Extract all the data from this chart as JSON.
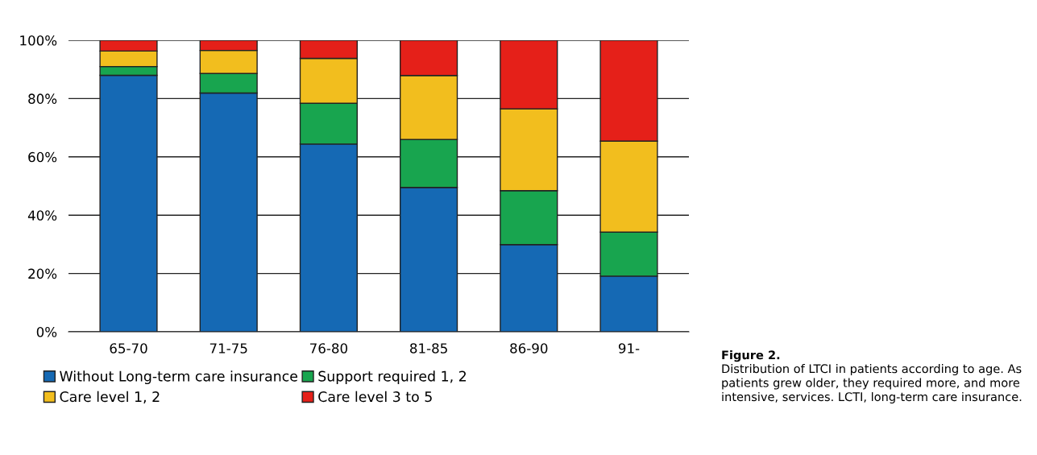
{
  "chart_data": {
    "type": "bar",
    "stacked": true,
    "categories": [
      "65-70",
      "71-75",
      "76-80",
      "81-85",
      "86-90",
      "91-"
    ],
    "series": [
      {
        "name": "Without Long-term care insurance",
        "color": "#1569b4",
        "values": [
          88.0,
          81.9,
          64.4,
          49.5,
          29.9,
          19.1
        ]
      },
      {
        "name": "Support required 1, 2",
        "color": "#18a54f",
        "values": [
          3.0,
          6.7,
          14.0,
          16.5,
          18.5,
          15.1
        ]
      },
      {
        "name": "Care level 1, 2",
        "color": "#f2be1e",
        "values": [
          5.3,
          7.9,
          15.4,
          21.9,
          28.1,
          31.2
        ]
      },
      {
        "name": "Care level 3 to 5",
        "color": "#e52019",
        "values": [
          3.7,
          3.5,
          6.2,
          12.1,
          23.5,
          34.6
        ]
      }
    ],
    "ylim": [
      0,
      100
    ],
    "yticks": [
      {
        "value": 0,
        "label": "0%"
      },
      {
        "value": 20,
        "label": "20%"
      },
      {
        "value": 40,
        "label": "40%"
      },
      {
        "value": 60,
        "label": "60%"
      },
      {
        "value": 80,
        "label": "80%"
      },
      {
        "value": 100,
        "label": "100%"
      }
    ],
    "grid": "y",
    "legend": "bottom",
    "annotations": [
      "Figure 2.",
      "Distribution of LTCI in patients according to age. As patients grew older, they required more, and more intensive, services. LCTI, long-term care insurance."
    ]
  }
}
